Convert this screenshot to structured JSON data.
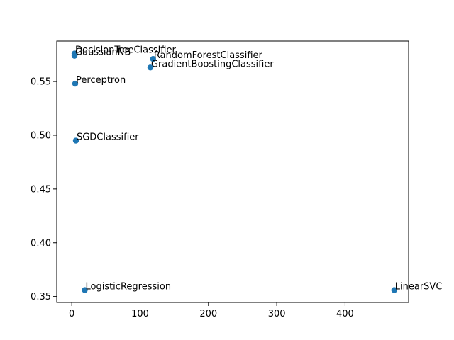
{
  "chart_data": {
    "type": "scatter",
    "title": "",
    "xlabel": "",
    "ylabel": "",
    "xlim": [
      -22,
      493
    ],
    "ylim": [
      0.3445,
      0.5876
    ],
    "xticks": [
      0,
      100,
      200,
      300,
      400
    ],
    "yticks": [
      0.35,
      0.4,
      0.45,
      0.5,
      0.55
    ],
    "xtick_labels": [
      "0",
      "100",
      "200",
      "300",
      "400"
    ],
    "ytick_labels": [
      "0.35",
      "0.40",
      "0.45",
      "0.50",
      "0.55"
    ],
    "grid": false,
    "marker_color": "#1f77b4",
    "points": [
      {
        "label": "DecisionTreeClassifier",
        "x": 4,
        "y": 0.576
      },
      {
        "label": "GaussianNB",
        "x": 4,
        "y": 0.574
      },
      {
        "label": "RandomForestClassifier",
        "x": 119,
        "y": 0.571
      },
      {
        "label": "GradientBoostingClassifier",
        "x": 115,
        "y": 0.563
      },
      {
        "label": "Perceptron",
        "x": 5,
        "y": 0.548
      },
      {
        "label": "SGDClassifier",
        "x": 6,
        "y": 0.495
      },
      {
        "label": "LogisticRegression",
        "x": 19,
        "y": 0.356
      },
      {
        "label": "LinearSVC",
        "x": 472,
        "y": 0.356
      }
    ]
  }
}
